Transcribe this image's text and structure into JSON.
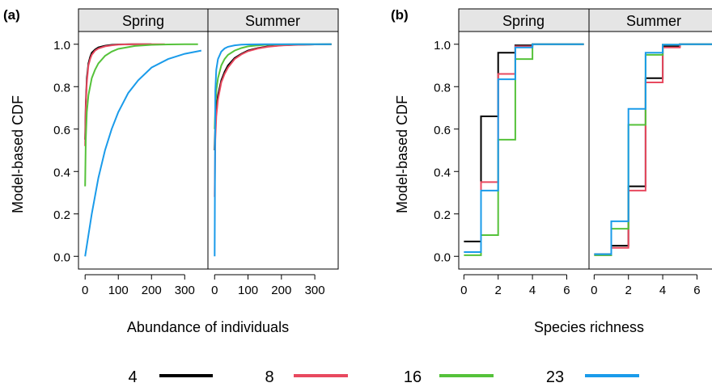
{
  "legend": {
    "entries": [
      {
        "label": "4",
        "color": "#000000"
      },
      {
        "label": "8",
        "color": "#e8495f"
      },
      {
        "label": "16",
        "color": "#55c23a"
      },
      {
        "label": "23",
        "color": "#1a9bea"
      }
    ],
    "placement": "bottom"
  },
  "chart_data": [
    {
      "panel_label": "(a)",
      "type": "line",
      "ylabel": "Model-based CDF",
      "xlabel": "Abundance of individuals",
      "facets": [
        "Spring",
        "Summer"
      ],
      "xlim": [
        -20,
        370
      ],
      "ylim": [
        -0.06,
        1.06
      ],
      "xticks": [
        0,
        100,
        200,
        300
      ],
      "yticks": [
        0.0,
        0.2,
        0.4,
        0.6,
        0.8,
        1.0
      ],
      "ytick_labels": [
        "0.0",
        "0.2",
        "0.4",
        "0.6",
        "0.8",
        "1.0"
      ],
      "grid": false,
      "series": [
        {
          "facet": "Spring",
          "name": "4",
          "color": "#000000",
          "x": [
            0,
            2,
            5,
            10,
            15,
            20,
            30,
            40,
            60,
            80,
            100,
            140,
            200
          ],
          "y": [
            0.55,
            0.72,
            0.84,
            0.91,
            0.94,
            0.96,
            0.975,
            0.985,
            0.993,
            0.997,
            0.999,
            1.0,
            1.0
          ]
        },
        {
          "facet": "Spring",
          "name": "8",
          "color": "#e8495f",
          "x": [
            0,
            2,
            5,
            10,
            15,
            20,
            30,
            40,
            60,
            80,
            100,
            140,
            200,
            240
          ],
          "y": [
            0.52,
            0.7,
            0.82,
            0.9,
            0.93,
            0.95,
            0.97,
            0.98,
            0.99,
            0.995,
            0.998,
            1.0,
            1.0,
            1.0
          ]
        },
        {
          "facet": "Spring",
          "name": "16",
          "color": "#55c23a",
          "x": [
            0,
            2,
            5,
            10,
            20,
            30,
            40,
            60,
            80,
            100,
            150,
            200,
            250,
            300,
            340
          ],
          "y": [
            0.33,
            0.55,
            0.68,
            0.76,
            0.84,
            0.88,
            0.91,
            0.945,
            0.965,
            0.978,
            0.992,
            0.997,
            0.999,
            1.0,
            1.0
          ]
        },
        {
          "facet": "Spring",
          "name": "23",
          "color": "#1a9bea",
          "x": [
            0,
            10,
            20,
            40,
            60,
            80,
            100,
            130,
            160,
            200,
            250,
            300,
            350
          ],
          "y": [
            0.0,
            0.1,
            0.2,
            0.37,
            0.5,
            0.6,
            0.68,
            0.77,
            0.83,
            0.89,
            0.93,
            0.955,
            0.97
          ]
        },
        {
          "facet": "Summer",
          "name": "4",
          "color": "#000000",
          "x": [
            0,
            2,
            5,
            10,
            20,
            30,
            40,
            60,
            80,
            100,
            130,
            160,
            200,
            250,
            300,
            350
          ],
          "y": [
            0.5,
            0.62,
            0.7,
            0.76,
            0.83,
            0.87,
            0.9,
            0.935,
            0.955,
            0.97,
            0.982,
            0.99,
            0.995,
            0.998,
            0.999,
            1.0
          ]
        },
        {
          "facet": "Summer",
          "name": "8",
          "color": "#e8495f",
          "x": [
            0,
            2,
            5,
            10,
            20,
            30,
            40,
            60,
            80,
            100,
            130,
            160,
            200,
            250,
            300,
            350
          ],
          "y": [
            0.28,
            0.55,
            0.66,
            0.74,
            0.82,
            0.86,
            0.89,
            0.93,
            0.952,
            0.967,
            0.98,
            0.988,
            0.994,
            0.997,
            0.999,
            1.0
          ]
        },
        {
          "facet": "Summer",
          "name": "16",
          "color": "#55c23a",
          "x": [
            0,
            2,
            5,
            10,
            20,
            30,
            40,
            60,
            80,
            100,
            130,
            160,
            200,
            250,
            300,
            350
          ],
          "y": [
            0.6,
            0.7,
            0.78,
            0.84,
            0.9,
            0.93,
            0.95,
            0.97,
            0.982,
            0.99,
            0.995,
            0.998,
            0.999,
            1.0,
            1.0,
            1.0
          ]
        },
        {
          "facet": "Summer",
          "name": "23",
          "color": "#1a9bea",
          "x": [
            0,
            2,
            5,
            10,
            20,
            30,
            40,
            60,
            80,
            100,
            150,
            200,
            250,
            300,
            350
          ],
          "y": [
            0.0,
            0.78,
            0.88,
            0.93,
            0.965,
            0.98,
            0.988,
            0.995,
            0.998,
            0.999,
            1.0,
            1.0,
            1.0,
            1.0,
            1.0
          ]
        }
      ]
    },
    {
      "panel_label": "(b)",
      "type": "line",
      "step": true,
      "ylabel": "Model-based CDF",
      "xlabel": "Species richness",
      "facets": [
        "Spring",
        "Summer"
      ],
      "xlim": [
        -0.3,
        7.3
      ],
      "ylim": [
        -0.06,
        1.06
      ],
      "xticks": [
        0,
        2,
        4,
        6
      ],
      "yticks": [
        0.0,
        0.2,
        0.4,
        0.6,
        0.8,
        1.0
      ],
      "ytick_labels": [
        "0.0",
        "0.2",
        "0.4",
        "0.6",
        "0.8",
        "1.0"
      ],
      "grid": false,
      "series": [
        {
          "facet": "Spring",
          "name": "4",
          "color": "#000000",
          "x": [
            0,
            1,
            2,
            3,
            4,
            5,
            6,
            7
          ],
          "y": [
            0.07,
            0.66,
            0.96,
            0.995,
            1.0,
            1.0,
            1.0,
            1.0
          ]
        },
        {
          "facet": "Spring",
          "name": "8",
          "color": "#e8495f",
          "x": [
            0,
            1,
            2,
            3,
            4,
            5,
            6,
            7
          ],
          "y": [
            0.02,
            0.35,
            0.86,
            0.99,
            1.0,
            1.0,
            1.0,
            1.0
          ]
        },
        {
          "facet": "Spring",
          "name": "16",
          "color": "#55c23a",
          "x": [
            0,
            1,
            2,
            3,
            4,
            5,
            6,
            7
          ],
          "y": [
            0.005,
            0.1,
            0.55,
            0.93,
            1.0,
            1.0,
            1.0,
            1.0
          ]
        },
        {
          "facet": "Spring",
          "name": "23",
          "color": "#1a9bea",
          "x": [
            0,
            1,
            2,
            3,
            4,
            5,
            6,
            7
          ],
          "y": [
            0.02,
            0.31,
            0.835,
            0.985,
            1.0,
            1.0,
            1.0,
            1.0
          ]
        },
        {
          "facet": "Summer",
          "name": "4",
          "color": "#000000",
          "x": [
            0,
            1,
            2,
            3,
            4,
            5,
            6,
            7
          ],
          "y": [
            0.01,
            0.05,
            0.33,
            0.84,
            0.99,
            1.0,
            1.0,
            1.0
          ]
        },
        {
          "facet": "Summer",
          "name": "8",
          "color": "#e8495f",
          "x": [
            0,
            1,
            2,
            3,
            4,
            5,
            6,
            7
          ],
          "y": [
            0.005,
            0.04,
            0.31,
            0.82,
            0.985,
            1.0,
            1.0,
            1.0
          ]
        },
        {
          "facet": "Summer",
          "name": "16",
          "color": "#55c23a",
          "x": [
            0,
            1,
            2,
            3,
            4,
            5,
            6,
            7
          ],
          "y": [
            0.005,
            0.13,
            0.62,
            0.95,
            0.998,
            1.0,
            1.0,
            1.0
          ]
        },
        {
          "facet": "Summer",
          "name": "23",
          "color": "#1a9bea",
          "x": [
            0,
            1,
            2,
            3,
            4,
            5,
            6,
            7
          ],
          "y": [
            0.01,
            0.165,
            0.695,
            0.96,
            0.998,
            1.0,
            1.0,
            1.0
          ]
        }
      ]
    }
  ]
}
